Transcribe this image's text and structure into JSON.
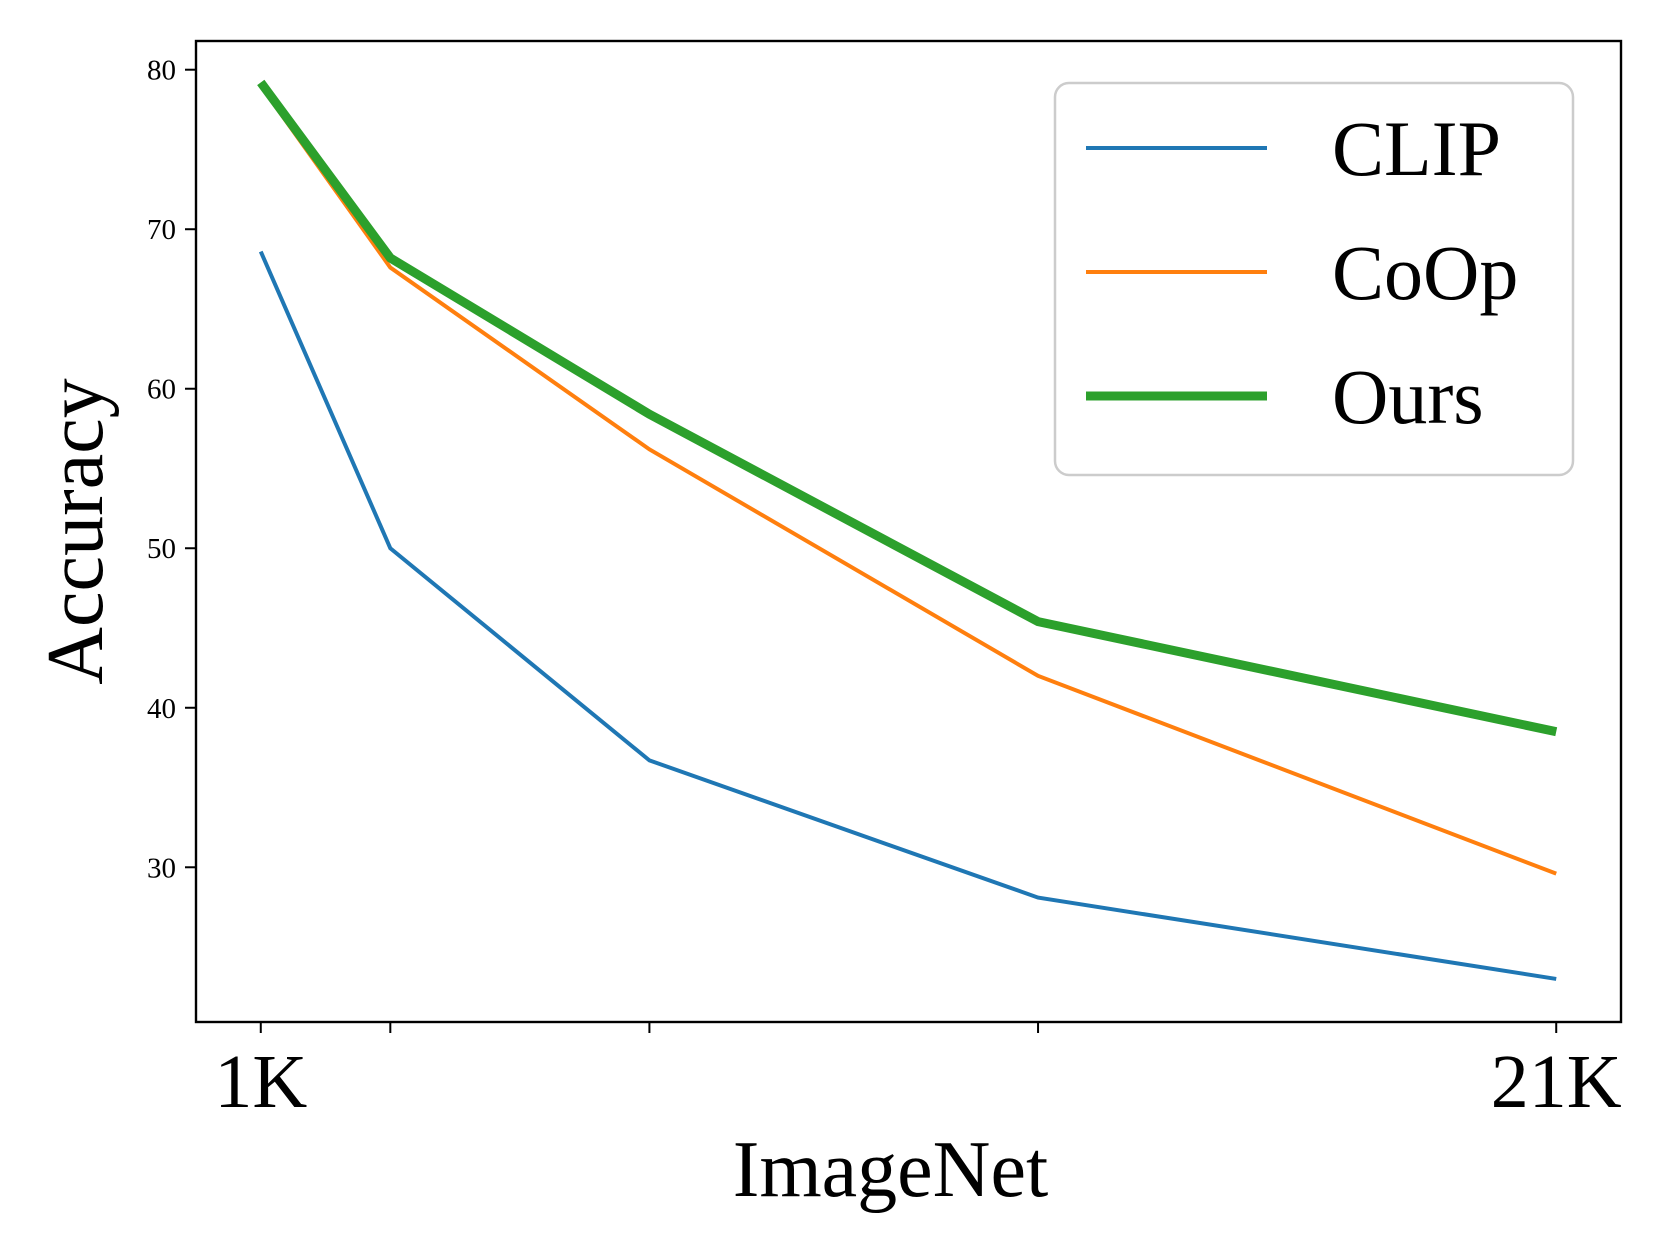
{
  "chart_data": {
    "type": "line",
    "title": "",
    "xlabel": "ImageNet",
    "ylabel": "Accuracy",
    "x": [
      0,
      1,
      3,
      6,
      10
    ],
    "x_tick_positions": [
      0,
      1,
      3,
      6,
      10
    ],
    "x_tick_labels": [
      "1K",
      "",
      "",
      "",
      "21K"
    ],
    "xlim": [
      -0.5,
      10.5
    ],
    "y_ticks": [
      30,
      40,
      50,
      60,
      70,
      80
    ],
    "ylim": [
      20.3,
      81.8
    ],
    "grid": false,
    "legend_position": "top-right",
    "series": [
      {
        "name": "CLIP",
        "color": "#1f77b4",
        "line_width": "thin",
        "values": [
          68.6,
          50.0,
          36.7,
          28.1,
          23.0
        ]
      },
      {
        "name": "CoOp",
        "color": "#ff7f0e",
        "line_width": "thin",
        "values": [
          79.0,
          67.6,
          56.2,
          42.0,
          29.6
        ]
      },
      {
        "name": "Ours",
        "color": "#2ca02c",
        "line_width": "thick",
        "values": [
          79.2,
          68.2,
          58.4,
          45.4,
          38.5
        ]
      }
    ]
  }
}
